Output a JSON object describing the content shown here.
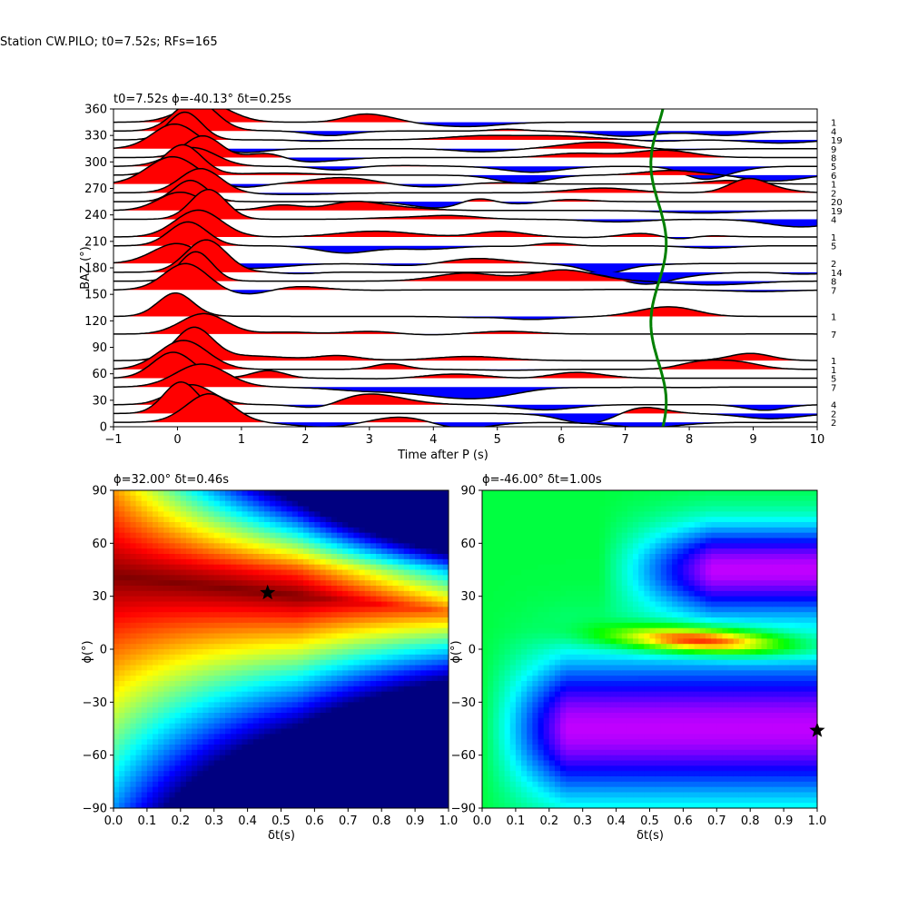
{
  "suptitle": "Station CW.PILO; t0=7.52s; RFs=165",
  "chart_data": [
    {
      "type": "line",
      "title": "t0=7.52s ϕ=-40.13° δt=0.25s",
      "xlabel": "Time after P (s)",
      "ylabel": "BAZ (°)",
      "xlim": [
        -1,
        10
      ],
      "ylim": [
        0,
        360
      ],
      "xticks": [
        "−1",
        "0",
        "1",
        "2",
        "3",
        "4",
        "5",
        "6",
        "7",
        "8",
        "9",
        "10"
      ],
      "yticks": [
        "0",
        "30",
        "60",
        "90",
        "120",
        "150",
        "180",
        "210",
        "240",
        "270",
        "300",
        "330",
        "360"
      ],
      "fill_colors": {
        "positive": "#ff0000",
        "negative": "#0000ff"
      },
      "t0_curve_color": "#008000",
      "traces": [
        {
          "baz": 345,
          "count": "1"
        },
        {
          "baz": 335,
          "count": "4"
        },
        {
          "baz": 325,
          "count": "19"
        },
        {
          "baz": 315,
          "count": "9"
        },
        {
          "baz": 305,
          "count": "8"
        },
        {
          "baz": 295,
          "count": "5"
        },
        {
          "baz": 285,
          "count": "6"
        },
        {
          "baz": 275,
          "count": "1"
        },
        {
          "baz": 265,
          "count": "2"
        },
        {
          "baz": 255,
          "count": "20"
        },
        {
          "baz": 245,
          "count": "19"
        },
        {
          "baz": 235,
          "count": "4"
        },
        {
          "baz": 215,
          "count": "1"
        },
        {
          "baz": 205,
          "count": "5"
        },
        {
          "baz": 185,
          "count": "2"
        },
        {
          "baz": 175,
          "count": "14"
        },
        {
          "baz": 165,
          "count": "8"
        },
        {
          "baz": 155,
          "count": "7"
        },
        {
          "baz": 125,
          "count": "1"
        },
        {
          "baz": 105,
          "count": "7"
        },
        {
          "baz": 75,
          "count": "1"
        },
        {
          "baz": 65,
          "count": "1"
        },
        {
          "baz": 55,
          "count": "5"
        },
        {
          "baz": 45,
          "count": "7"
        },
        {
          "baz": 25,
          "count": "4"
        },
        {
          "baz": 15,
          "count": "2"
        },
        {
          "baz": 5,
          "count": "2"
        }
      ]
    },
    {
      "type": "heatmap",
      "title": "ϕ=32.00° δt=0.46s",
      "xlabel": "δt(s)",
      "ylabel": "ϕ(°)",
      "xlim": [
        0,
        1
      ],
      "ylim": [
        -90,
        90
      ],
      "xticks": [
        "0.0",
        "0.1",
        "0.2",
        "0.3",
        "0.4",
        "0.5",
        "0.6",
        "0.7",
        "0.8",
        "0.9",
        "1.0"
      ],
      "yticks": [
        "−90",
        "−60",
        "−30",
        "0",
        "30",
        "60",
        "90"
      ],
      "best": {
        "dt": 0.46,
        "phi": 32.0
      },
      "colormap": "jet"
    },
    {
      "type": "heatmap",
      "title": "ϕ=-46.00° δt=1.00s",
      "xlabel": "δt(s)",
      "ylabel": "ϕ(°)",
      "xlim": [
        0,
        1
      ],
      "ylim": [
        -90,
        90
      ],
      "xticks": [
        "0.0",
        "0.1",
        "0.2",
        "0.3",
        "0.4",
        "0.5",
        "0.6",
        "0.7",
        "0.8",
        "0.9",
        "1.0"
      ],
      "yticks": [
        "−90",
        "−60",
        "−30",
        "0",
        "30",
        "60",
        "90"
      ],
      "best": {
        "dt": 1.0,
        "phi": -46.0
      },
      "colormap": "hsv"
    }
  ]
}
